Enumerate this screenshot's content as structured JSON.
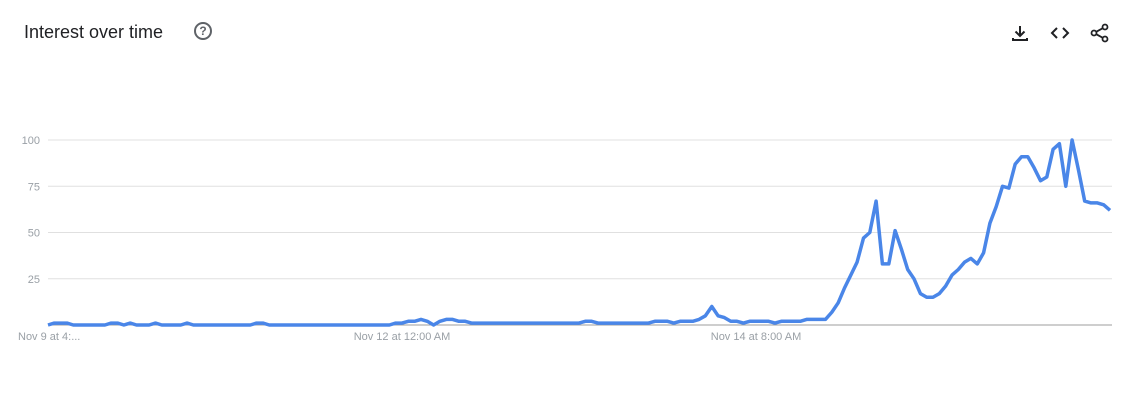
{
  "header": {
    "title": "Interest over time",
    "help_icon": "help-circle-icon",
    "actions": [
      {
        "icon": "download-icon"
      },
      {
        "icon": "embed-code-icon"
      },
      {
        "icon": "share-icon"
      }
    ]
  },
  "chart_data": {
    "type": "line",
    "title": "Interest over time",
    "ylim": [
      0,
      100
    ],
    "yticks": [
      "100",
      "75",
      "50",
      "25"
    ],
    "ytick_values": [
      100,
      75,
      50,
      25
    ],
    "xtick_labels": [
      "Nov 9 at 4:...",
      "Nov 12 at 12:00 AM",
      "Nov 14 at 8:00 AM"
    ],
    "xtick_index": [
      0,
      56,
      112
    ],
    "grid": true,
    "color": "#4a86e8",
    "series": [
      {
        "values": [
          0,
          1,
          1,
          1,
          0,
          0,
          0,
          0,
          0,
          0,
          1,
          1,
          0,
          1,
          0,
          0,
          0,
          1,
          0,
          0,
          0,
          0,
          1,
          0,
          0,
          0,
          0,
          0,
          0,
          0,
          0,
          0,
          0,
          1,
          1,
          0,
          0,
          0,
          0,
          0,
          0,
          0,
          0,
          0,
          0,
          0,
          0,
          0,
          0,
          0,
          0,
          0,
          0,
          0,
          0,
          1,
          1,
          2,
          2,
          3,
          2,
          0,
          2,
          3,
          3,
          2,
          2,
          1,
          1,
          1,
          1,
          1,
          1,
          1,
          1,
          1,
          1,
          1,
          1,
          1,
          1,
          1,
          1,
          1,
          1,
          2,
          2,
          1,
          1,
          1,
          1,
          1,
          1,
          1,
          1,
          1,
          2,
          2,
          2,
          1,
          2,
          2,
          2,
          3,
          5,
          10,
          5,
          4,
          2,
          2,
          1,
          2,
          2,
          2,
          2,
          1,
          2,
          2,
          2,
          2,
          3,
          3,
          3,
          3,
          7,
          12,
          20,
          27,
          34,
          47,
          50,
          67,
          33,
          33,
          51,
          41,
          30,
          25,
          17,
          15,
          15,
          17,
          21,
          27,
          30,
          34,
          36,
          33,
          39,
          55,
          64,
          75,
          74,
          87,
          91,
          91,
          85,
          78,
          80,
          95,
          98,
          75,
          100,
          84,
          67,
          66,
          66,
          65,
          62
        ]
      }
    ]
  }
}
